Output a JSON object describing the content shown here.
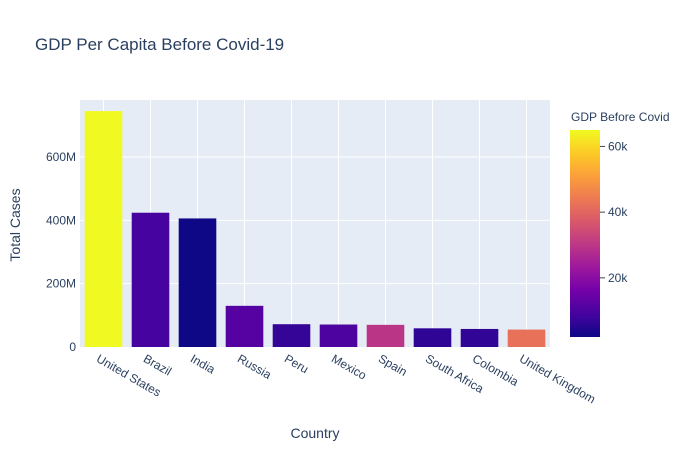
{
  "chart_data": {
    "type": "bar",
    "title": "GDP Per Capita Before Covid-19",
    "xlabel": "Country",
    "ylabel": "Total Cases",
    "categories": [
      "United States",
      "Brazil",
      "India",
      "Russia",
      "Peru",
      "Mexico",
      "Spain",
      "South Africa",
      "Colombia",
      "United Kingdom"
    ],
    "values": [
      745000000,
      424000000,
      406000000,
      130000000,
      72000000,
      71000000,
      70000000,
      59000000,
      57000000,
      55000000
    ],
    "color_values": [
      65000,
      9000,
      2100,
      11500,
      6900,
      9900,
      29600,
      6000,
      6400,
      42300
    ],
    "ylim": [
      0,
      780000000
    ],
    "yticks": [
      0,
      200000000,
      400000000,
      600000000
    ],
    "ytick_labels": [
      "0",
      "200M",
      "400M",
      "600M"
    ],
    "colorbar": {
      "title": "GDP Before Covid",
      "range": [
        2000,
        65000
      ],
      "ticks": [
        20000,
        40000,
        60000
      ],
      "tick_labels": [
        "20k",
        "40k",
        "60k"
      ],
      "colorscale": [
        "#0d0887",
        "#46039f",
        "#7201a8",
        "#9c179e",
        "#bd3786",
        "#d8576b",
        "#ed7953",
        "#fb9f3a",
        "#fdca26",
        "#f0f921"
      ]
    },
    "grid": true,
    "plot_background": "#e5ecf6"
  }
}
